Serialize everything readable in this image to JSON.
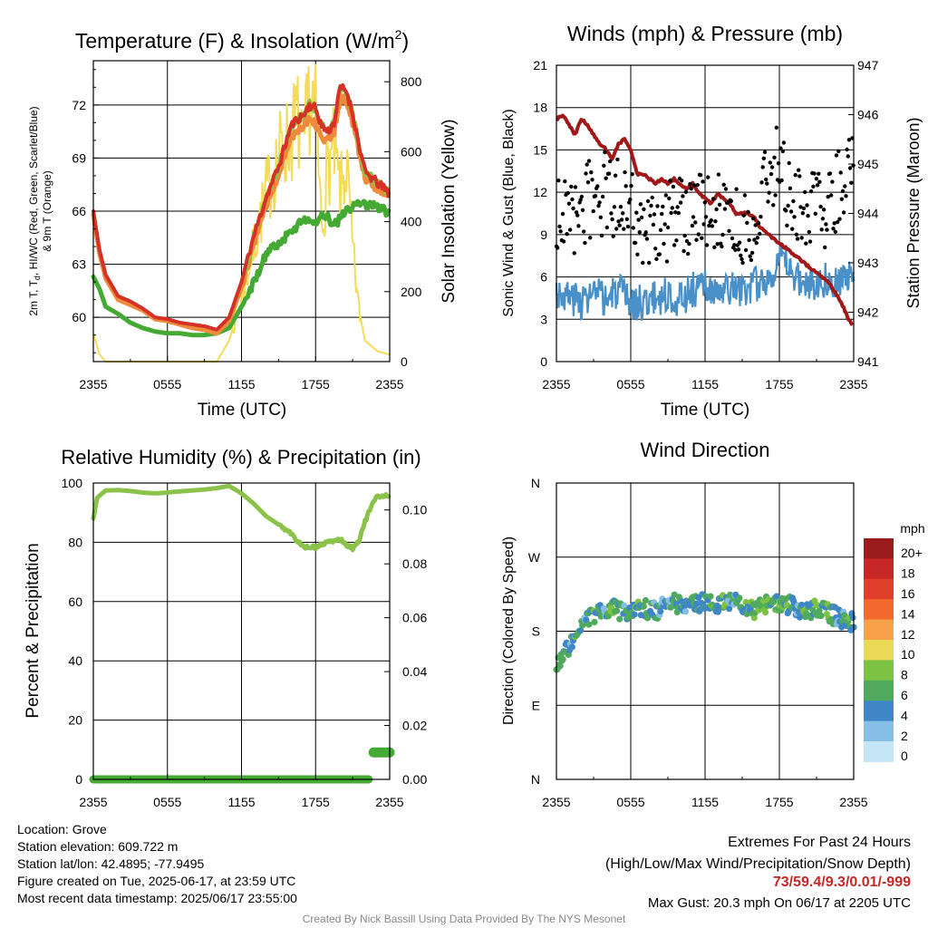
{
  "colors": {
    "t2m": "#d73027",
    "td": "#44aa33",
    "hiwc": "#8bc34a",
    "t9m": "#f08a3a",
    "solar": "#f3dc5a",
    "sonic": "#4a90c8",
    "gust": "#000000",
    "pressure": "#a01818",
    "rh": "#8bc34a",
    "precip": "#44aa33",
    "grid": "#000000"
  },
  "panels": {
    "temp": {
      "title": "Temperature (F) & Insolation (W/m",
      "title_sup": "2",
      "title_end": ")",
      "ylabel_lines": [
        "2m T, T",
        "d",
        ", HI/WC (Red, Green, Scarlet/Blue)",
        "& 9m T (Orange)"
      ],
      "y2label": "Solar Insolation (Yellow)",
      "xlabel": "Time (UTC)"
    },
    "wind": {
      "title": "Winds (mph) & Pressure (mb)",
      "ylabel": "Sonic Wind & Gust (Blue, Black)",
      "y2label": "Station Pressure (Maroon)",
      "xlabel": "Time (UTC)"
    },
    "rh": {
      "title": "Relative Humidity (%) & Precipitation (in)",
      "ylabel": "Percent & Precipitation"
    },
    "dir": {
      "title": "Wind Direction",
      "ylabel": "Direction (Colored By Speed)",
      "legend_title": "mph",
      "legend_labels": [
        "20+",
        "18",
        "16",
        "14",
        "12",
        "10",
        "8",
        "6",
        "4",
        "2",
        "0"
      ],
      "legend_colors": [
        "#9b1c1c",
        "#c62828",
        "#e0402b",
        "#f26a2e",
        "#f7a24a",
        "#ead957",
        "#7cc243",
        "#4faa5e",
        "#3f86c6",
        "#86bfe6",
        "#c6e6f7"
      ]
    }
  },
  "footer": {
    "left": [
      "Location: Grove",
      "Station elevation: 609.722 m",
      "Station lat/lon: 42.4895; -77.9495",
      "Figure created on Tue, 2025-06-17, at 23:59 UTC",
      "Most recent data timestamp: 2025/06/17 23:55:00"
    ],
    "extremes_title": "Extremes For Past 24 Hours",
    "extremes_sub": "(High/Low/Max Wind/Precipitation/Snow Depth)",
    "extremes_values": "73/59.4/9.3/0.01/-999",
    "max_gust": "Max Gust: 20.3 mph On 06/17 at 2205 UTC",
    "credit": "Created By Nick Bassill Using Data Provided By The NYS Mesonet"
  },
  "chart_data": [
    {
      "type": "line",
      "title": "Temperature (F) & Insolation (W/m2)",
      "xlabel": "Time (UTC)",
      "x_ticks": [
        "2355",
        "0555",
        "1155",
        "1755",
        "2355"
      ],
      "x_hours": [
        0,
        6,
        12,
        18,
        24
      ],
      "x": [
        0,
        0.5,
        1,
        2,
        3,
        4,
        5,
        6,
        7,
        8,
        9,
        10,
        11,
        12,
        13,
        14,
        15,
        16,
        16.5,
        17,
        17.5,
        18,
        18.5,
        19,
        19.5,
        20,
        20.5,
        21,
        21.5,
        22,
        23,
        24
      ],
      "ylim": [
        57.5,
        74.5
      ],
      "y_ticks": [
        60,
        63,
        66,
        69,
        72
      ],
      "y2lim": [
        0,
        860
      ],
      "y2_ticks": [
        0,
        200,
        400,
        600,
        800
      ],
      "series": [
        {
          "name": "2m T",
          "axis": "left",
          "values": [
            66.0,
            63.8,
            62.4,
            61.2,
            60.9,
            60.5,
            60.0,
            59.9,
            59.7,
            59.6,
            59.5,
            59.3,
            60.0,
            62.0,
            64.6,
            66.8,
            68.5,
            70.8,
            71.2,
            71.4,
            72.0,
            71.8,
            70.8,
            70.5,
            71.0,
            73.0,
            72.8,
            71.5,
            69.8,
            68.2,
            67.6,
            67.0
          ]
        },
        {
          "name": "9m T",
          "axis": "left",
          "values": [
            65.8,
            63.6,
            62.2,
            61.0,
            60.7,
            60.4,
            59.9,
            59.8,
            59.6,
            59.4,
            59.3,
            59.1,
            59.8,
            61.7,
            64.2,
            66.3,
            68.1,
            70.2,
            70.6,
            70.8,
            71.3,
            71.0,
            70.2,
            70.0,
            70.4,
            72.4,
            72.2,
            71.0,
            69.4,
            67.9,
            67.3,
            66.8
          ]
        },
        {
          "name": "HI/WC",
          "axis": "left",
          "values": [
            66.0,
            63.8,
            62.4,
            61.2,
            60.9,
            60.5,
            60.0,
            59.9,
            59.7,
            59.6,
            59.5,
            59.3,
            60.0,
            62.0,
            64.6,
            66.8,
            68.5,
            70.8,
            71.2,
            71.4,
            72.0,
            71.8,
            70.8,
            70.5,
            71.0,
            73.0,
            72.8,
            71.5,
            69.8,
            68.2,
            67.6,
            67.0
          ]
        },
        {
          "name": "Td",
          "axis": "left",
          "values": [
            62.3,
            61.6,
            60.6,
            60.2,
            59.7,
            59.4,
            59.2,
            59.1,
            59.1,
            59.0,
            59.0,
            59.1,
            59.4,
            60.6,
            62.0,
            63.6,
            64.2,
            64.8,
            65.2,
            65.6,
            65.6,
            65.2,
            65.8,
            65.6,
            65.2,
            65.6,
            66.0,
            66.2,
            66.6,
            66.4,
            66.2,
            65.9
          ]
        },
        {
          "name": "Solar",
          "axis": "right",
          "values": [
            80,
            20,
            0,
            0,
            0,
            0,
            0,
            0,
            0,
            0,
            0,
            0,
            60,
            180,
            330,
            480,
            590,
            640,
            700,
            580,
            760,
            700,
            380,
            560,
            600,
            480,
            560,
            320,
            150,
            60,
            30,
            20
          ]
        }
      ]
    },
    {
      "type": "line",
      "title": "Winds (mph) & Pressure (mb)",
      "xlabel": "Time (UTC)",
      "x_ticks": [
        "2355",
        "0555",
        "1155",
        "1755",
        "2355"
      ],
      "x_hours": [
        0,
        6,
        12,
        18,
        24
      ],
      "ylim": [
        0,
        21
      ],
      "y_ticks": [
        0,
        3,
        6,
        9,
        12,
        15,
        18,
        21
      ],
      "y2lim": [
        941,
        947
      ],
      "y2_ticks": [
        941,
        942,
        943,
        944,
        945,
        946,
        947
      ],
      "pressure": {
        "x": [
          0,
          0.5,
          1,
          1.5,
          2,
          2.5,
          3,
          3.5,
          4,
          4.5,
          5,
          5.5,
          6,
          6.5,
          7,
          7.5,
          8,
          8.5,
          9,
          9.5,
          10,
          10.5,
          11,
          11.5,
          12,
          12.5,
          13,
          13.5,
          14,
          14.5,
          15,
          15.5,
          16,
          16.5,
          17,
          17.5,
          18,
          18.5,
          19,
          19.5,
          20,
          20.5,
          21,
          21.5,
          22,
          22.5,
          23,
          23.5,
          24
        ],
        "values": [
          945.9,
          946.0,
          945.8,
          945.6,
          945.9,
          945.8,
          945.6,
          945.4,
          945.3,
          945.1,
          945.4,
          945.5,
          945.3,
          944.8,
          944.8,
          944.7,
          944.6,
          944.7,
          944.6,
          944.7,
          944.6,
          944.5,
          944.6,
          944.4,
          944.3,
          944.2,
          944.4,
          944.3,
          944.2,
          944.0,
          944.0,
          944.0,
          943.9,
          943.7,
          943.6,
          943.5,
          943.4,
          943.3,
          943.2,
          943.1,
          943.0,
          942.9,
          942.8,
          942.7,
          942.6,
          942.4,
          942.2,
          941.9,
          941.7
        ]
      },
      "sonic_wind": {
        "x": [
          0,
          1,
          2,
          3,
          4,
          5,
          6,
          7,
          8,
          9,
          10,
          11,
          12,
          13,
          14,
          15,
          16,
          17,
          18,
          19,
          20,
          21,
          22,
          23,
          24
        ],
        "values": [
          5.0,
          4.6,
          4.3,
          4.8,
          4.4,
          5.0,
          4.1,
          4.2,
          4.5,
          4.7,
          4.4,
          5.1,
          5.3,
          4.6,
          5.2,
          5.0,
          5.4,
          5.8,
          7.2,
          6.4,
          5.4,
          5.7,
          5.9,
          5.8,
          5.9
        ]
      },
      "gust": {
        "x": [
          0,
          1,
          2,
          3,
          4,
          5,
          6,
          7,
          8,
          9,
          10,
          11,
          12,
          13,
          14,
          15,
          16,
          17,
          18,
          19,
          20,
          21,
          22,
          23,
          24
        ],
        "values": [
          10.2,
          10.5,
          10.8,
          11.5,
          12.0,
          11.5,
          10.5,
          9.5,
          9.0,
          9.8,
          10.0,
          10.5,
          10.2,
          11.0,
          10.6,
          9.8,
          9.8,
          13.5,
          13.8,
          11.5,
          11.0,
          10.5,
          11.0,
          12.5,
          14.5
        ],
        "max": 20.3
      }
    },
    {
      "type": "line",
      "title": "Relative Humidity (%) & Precipitation (in)",
      "x_ticks": [
        "2355",
        "0555",
        "1155",
        "1755",
        "2355"
      ],
      "x_hours": [
        0,
        6,
        12,
        18,
        24
      ],
      "ylim": [
        0,
        100
      ],
      "y_ticks": [
        0,
        20,
        40,
        60,
        80,
        100
      ],
      "y2lim": [
        0,
        0.11
      ],
      "y2_ticks": [
        0.0,
        0.02,
        0.04,
        0.06,
        0.08,
        0.1
      ],
      "series": [
        {
          "name": "RH",
          "axis": "left",
          "x": [
            0,
            0.3,
            1,
            2,
            3,
            4,
            5,
            6,
            7,
            8,
            9,
            10,
            11,
            12,
            13,
            14,
            15,
            16,
            16.5,
            17,
            17.5,
            18,
            18.5,
            19,
            19.5,
            20,
            20.5,
            21,
            21.5,
            22,
            22.5,
            23,
            24
          ],
          "values": [
            88,
            95,
            97.5,
            97.6,
            97.3,
            96.8,
            96.5,
            96.8,
            97.2,
            97.5,
            97.8,
            98.3,
            99.0,
            96.5,
            93.0,
            88.8,
            86.0,
            83.0,
            80.5,
            78.5,
            78.5,
            78.2,
            79.2,
            80.0,
            80.5,
            81.0,
            79.0,
            78.0,
            80.5,
            87.0,
            92.0,
            95.5,
            96.0
          ]
        },
        {
          "name": "Precip",
          "axis": "right",
          "x": [
            0,
            22.3,
            22.4,
            24
          ],
          "values": [
            0.0,
            0.0,
            0.01,
            0.01
          ]
        }
      ]
    },
    {
      "type": "scatter",
      "title": "Wind Direction",
      "ylabel": "Direction (Colored By Speed)",
      "x_ticks": [
        "2355",
        "0555",
        "1155",
        "1755",
        "2355"
      ],
      "x_hours": [
        0,
        6,
        12,
        18,
        24
      ],
      "y_ticks": [
        "N",
        "E",
        "S",
        "W",
        "N"
      ],
      "y_degrees": [
        0,
        90,
        180,
        270,
        360
      ],
      "x": [
        0,
        0.5,
        1,
        1.5,
        2,
        2.5,
        3,
        3.5,
        4,
        4.5,
        5,
        5.5,
        6,
        6.5,
        7,
        7.5,
        8,
        8.5,
        9,
        9.5,
        10,
        10.5,
        11,
        11.5,
        12,
        12.5,
        13,
        13.5,
        14,
        14.5,
        15,
        15.5,
        16,
        16.5,
        17,
        17.5,
        18,
        18.5,
        19,
        19.5,
        20,
        20.5,
        21,
        21.5,
        22,
        22.5,
        23,
        23.5,
        24
      ],
      "directions": [
        140,
        150,
        162,
        172,
        182,
        192,
        200,
        204,
        205,
        208,
        206,
        204,
        206,
        210,
        208,
        205,
        204,
        208,
        212,
        214,
        213,
        212,
        214,
        215,
        213,
        212,
        211,
        213,
        216,
        214,
        210,
        208,
        206,
        210,
        211,
        212,
        214,
        213,
        210,
        206,
        205,
        204,
        208,
        206,
        202,
        198,
        195,
        192,
        190
      ],
      "speeds": [
        4,
        5,
        4,
        6,
        5,
        4,
        6,
        5,
        4,
        7,
        5,
        4,
        5,
        6,
        4,
        5,
        4,
        3,
        4,
        5,
        6,
        4,
        5,
        4,
        5,
        6,
        4,
        7,
        4,
        3,
        5,
        6,
        7,
        8,
        6,
        5,
        7,
        6,
        5,
        4,
        6,
        5,
        7,
        5,
        6,
        5,
        4,
        6,
        5
      ]
    }
  ]
}
